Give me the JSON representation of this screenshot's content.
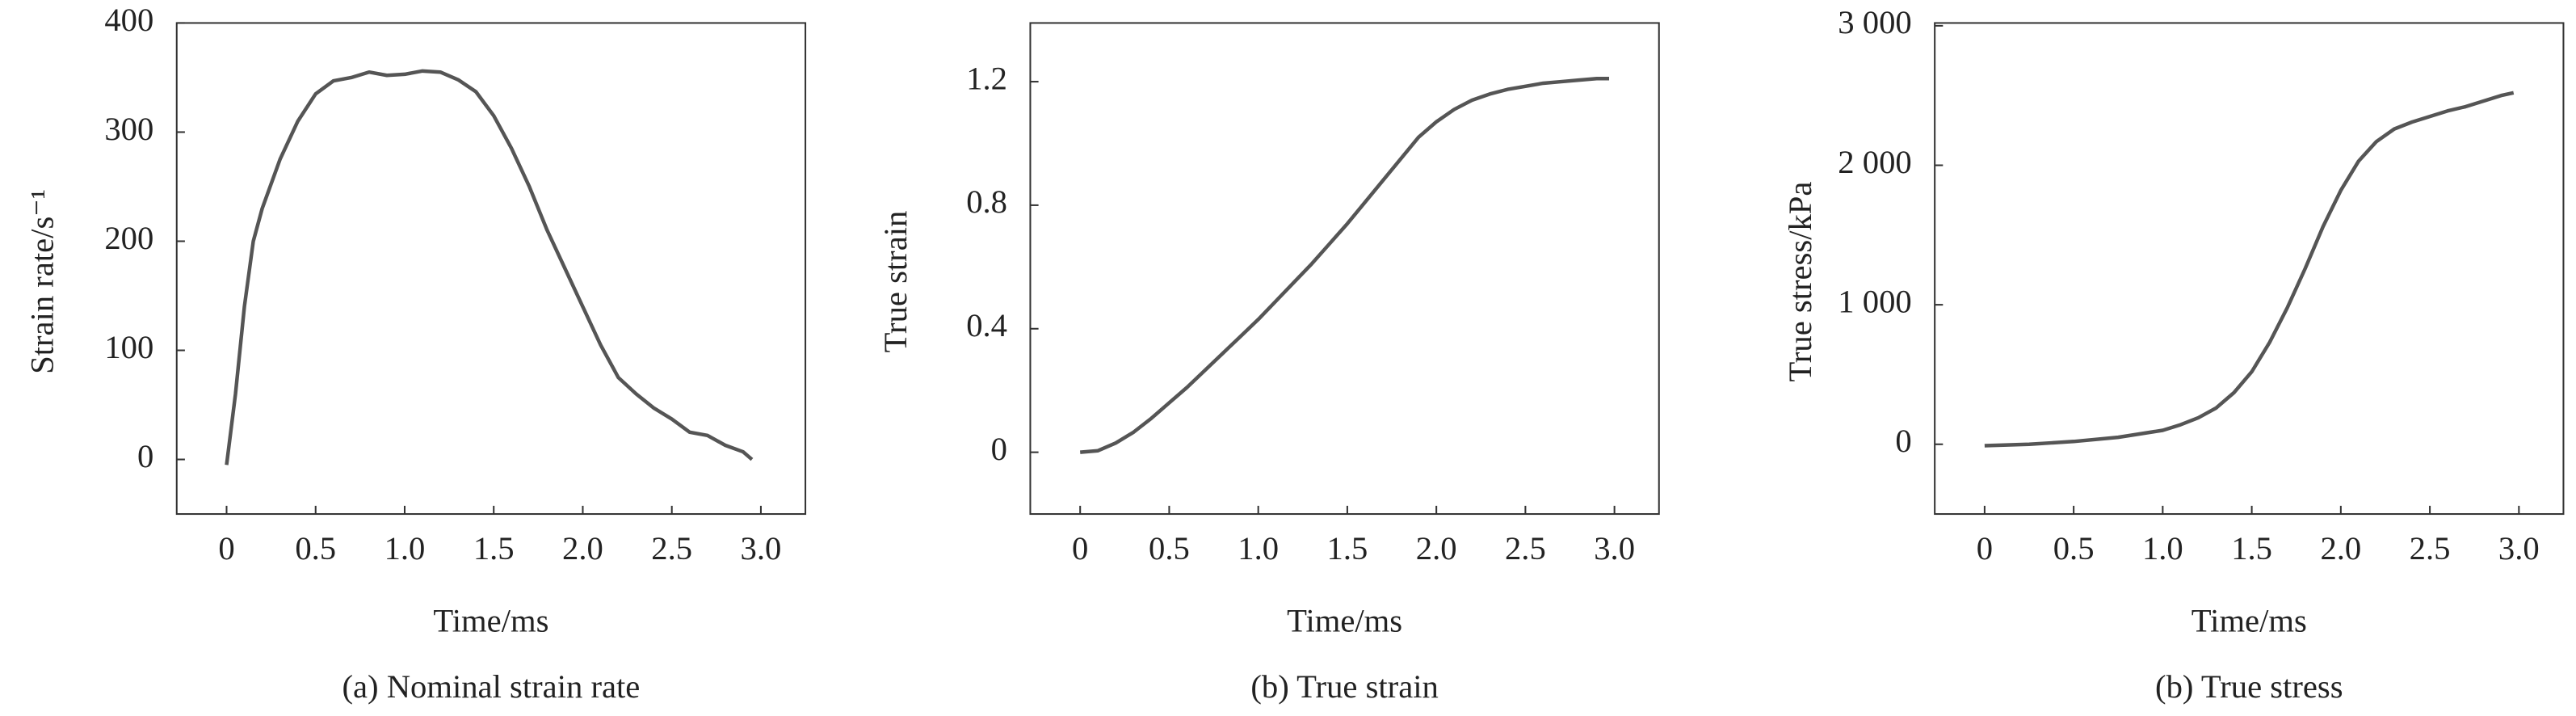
{
  "chart_data": [
    {
      "type": "line",
      "ylabel": "Strain rate/s⁻¹",
      "xlabel": "Time/ms",
      "caption": "(a) Nominal strain rate",
      "x": [
        0,
        0.05,
        0.1,
        0.15,
        0.2,
        0.3,
        0.4,
        0.5,
        0.6,
        0.7,
        0.8,
        0.9,
        1.0,
        1.1,
        1.2,
        1.3,
        1.4,
        1.5,
        1.6,
        1.7,
        1.8,
        1.9,
        2.0,
        2.1,
        2.2,
        2.3,
        2.4,
        2.5,
        2.6,
        2.7,
        2.8,
        2.9,
        2.95
      ],
      "values": [
        -5,
        60,
        140,
        200,
        230,
        275,
        310,
        335,
        347,
        350,
        355,
        352,
        353,
        356,
        355,
        348,
        337,
        315,
        285,
        250,
        210,
        175,
        140,
        105,
        75,
        60,
        47,
        37,
        25,
        22,
        13,
        7,
        0
      ],
      "color": "#555555",
      "xlim": [
        -0.28,
        3.25
      ],
      "ylim": [
        -50,
        400
      ],
      "xticks": [
        0,
        0.5,
        {
          "value": 1,
          "label": "1.0"
        },
        1.5,
        {
          "value": 2,
          "label": "2.0"
        },
        2.5,
        {
          "value": 3,
          "label": "3.0"
        }
      ],
      "yticks": [
        0,
        100,
        200,
        300,
        400
      ]
    },
    {
      "type": "line",
      "ylabel": "True strain",
      "xlabel": "Time/ms",
      "caption": "(b) True strain",
      "x": [
        0,
        0.1,
        0.2,
        0.3,
        0.4,
        0.5,
        0.6,
        0.7,
        0.8,
        0.9,
        1.0,
        1.1,
        1.2,
        1.3,
        1.4,
        1.5,
        1.6,
        1.7,
        1.8,
        1.9,
        2.0,
        2.1,
        2.2,
        2.3,
        2.4,
        2.5,
        2.6,
        2.7,
        2.8,
        2.9,
        2.97
      ],
      "values": [
        0,
        0.005,
        0.03,
        0.065,
        0.11,
        0.16,
        0.21,
        0.265,
        0.32,
        0.375,
        0.43,
        0.49,
        0.55,
        0.61,
        0.675,
        0.74,
        0.81,
        0.88,
        0.95,
        1.02,
        1.07,
        1.11,
        1.14,
        1.16,
        1.175,
        1.185,
        1.195,
        1.2,
        1.205,
        1.21,
        1.21
      ],
      "color": "#555555",
      "xlim": [
        -0.28,
        3.25
      ],
      "ylim": [
        -0.2,
        1.39
      ],
      "xticks": [
        0,
        0.5,
        {
          "value": 1,
          "label": "1.0"
        },
        1.5,
        {
          "value": 2,
          "label": "2.0"
        },
        2.5,
        {
          "value": 3,
          "label": "3.0"
        }
      ],
      "yticks": [
        0,
        0.4,
        0.8,
        1.2
      ]
    },
    {
      "type": "line",
      "ylabel": "True stress/kPa",
      "xlabel": "Time/ms",
      "caption": "(b) True stress",
      "x": [
        0,
        0.25,
        0.5,
        0.75,
        1.0,
        1.1,
        1.2,
        1.3,
        1.4,
        1.5,
        1.6,
        1.7,
        1.8,
        1.9,
        2.0,
        2.1,
        2.2,
        2.3,
        2.4,
        2.5,
        2.6,
        2.7,
        2.8,
        2.9,
        2.97
      ],
      "values": [
        -10,
        0,
        20,
        50,
        100,
        140,
        190,
        260,
        370,
        520,
        730,
        980,
        1260,
        1560,
        1820,
        2030,
        2170,
        2260,
        2310,
        2350,
        2390,
        2420,
        2460,
        2500,
        2520
      ],
      "color": "#555555",
      "xlim": [
        -0.28,
        3.25
      ],
      "ylim": [
        -500,
        3020
      ],
      "xticks": [
        0,
        0.5,
        {
          "value": 1,
          "label": "1.0"
        },
        1.5,
        {
          "value": 2,
          "label": "2.0"
        },
        2.5,
        {
          "value": 3,
          "label": "3.0"
        }
      ],
      "yticks": [
        0,
        {
          "value": 1000,
          "label": "1 000"
        },
        {
          "value": 2000,
          "label": "2 000"
        },
        {
          "value": 3000,
          "label": "3 000"
        }
      ]
    }
  ]
}
